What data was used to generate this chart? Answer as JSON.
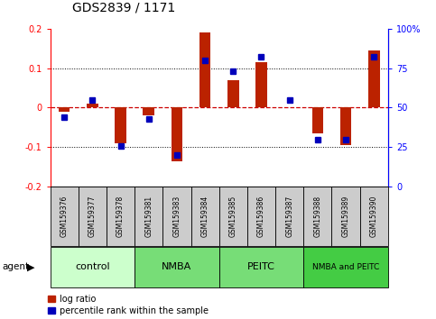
{
  "title": "GDS2839 / 1171",
  "samples": [
    "GSM159376",
    "GSM159377",
    "GSM159378",
    "GSM159381",
    "GSM159383",
    "GSM159384",
    "GSM159385",
    "GSM159386",
    "GSM159387",
    "GSM159388",
    "GSM159389",
    "GSM159390"
  ],
  "log_ratio": [
    -0.01,
    0.01,
    -0.09,
    -0.02,
    -0.135,
    0.19,
    0.07,
    0.115,
    0.0,
    -0.065,
    -0.095,
    0.145
  ],
  "percentile_rank": [
    44,
    55,
    26,
    43,
    20,
    80,
    73,
    82,
    55,
    30,
    30,
    82
  ],
  "groups": [
    {
      "label": "control",
      "start": 0,
      "end": 3,
      "color": "#ccffcc"
    },
    {
      "label": "NMBA",
      "start": 3,
      "end": 6,
      "color": "#77dd77"
    },
    {
      "label": "PEITC",
      "start": 6,
      "end": 9,
      "color": "#77dd77"
    },
    {
      "label": "NMBA and PEITC",
      "start": 9,
      "end": 12,
      "color": "#44cc44"
    }
  ],
  "ylim": [
    -0.2,
    0.2
  ],
  "y2lim": [
    0,
    100
  ],
  "bar_color": "#bb2200",
  "dot_color": "#0000bb",
  "zero_line_color": "#cc0000",
  "bg_color": "#ffffff",
  "sample_box_color": "#cccccc",
  "title_fontsize": 10,
  "axis_fontsize": 7,
  "label_fontsize": 5.5,
  "group_fontsize": 8,
  "legend_fontsize": 7
}
